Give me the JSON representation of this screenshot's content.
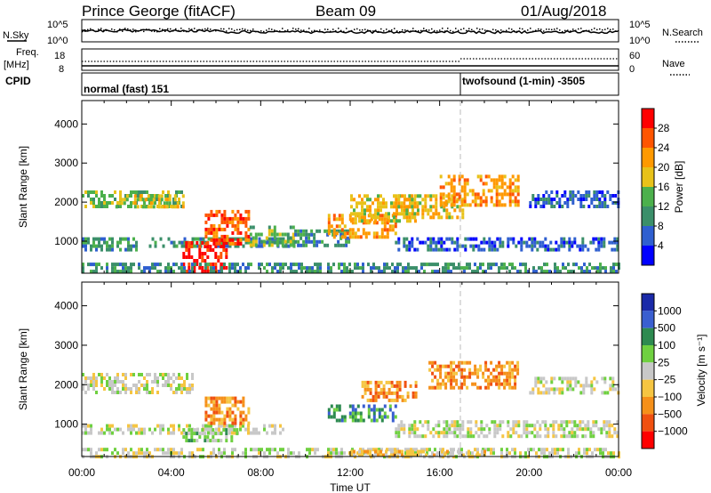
{
  "header": {
    "station": "Prince George (fitACF)",
    "beam": "Beam 09",
    "date": "01/Aug/2018"
  },
  "noise_panel": {
    "left_label": "N.Sky",
    "left_ticks": [
      "10^5",
      "10^0"
    ],
    "right_ticks": [
      "10^5",
      "10^0"
    ],
    "right_label": "N.Search"
  },
  "freq_panel": {
    "label_line1": "Freq.",
    "label_line2": "[MHz]",
    "left_ticks": [
      "18",
      "8"
    ],
    "right_ticks": [
      "60",
      "0"
    ],
    "right_label": "Nave"
  },
  "cpid_panel": {
    "label": "CPID",
    "segments": [
      {
        "label": "normal (fast) 151",
        "start_hour": 0
      },
      {
        "label": "twofsound (1-min) -3505",
        "start_hour": 17.0
      }
    ]
  },
  "colors": {
    "power": [
      "#0000ff",
      "#2f5fd0",
      "#3b8f6a",
      "#4cb04c",
      "#e8c21a",
      "#ff9900",
      "#ff5500",
      "#ff0000"
    ],
    "velocity": [
      "#1a2aa8",
      "#3a5fd0",
      "#2d8a50",
      "#6fd040",
      "#c8c8c8",
      "#f5c542",
      "#f5901a",
      "#f05010",
      "#ff0000"
    ],
    "ground_scatter": "#c8c8c8"
  },
  "chart_data": [
    {
      "type": "heatmap",
      "name": "power-panel",
      "ylabel": "Slant Range [km]",
      "yticks": [
        "1000",
        "2000",
        "3000",
        "4000"
      ],
      "ylim": [
        180,
        4600
      ],
      "xlim": [
        0,
        24
      ],
      "colorbar": {
        "label": "Power [dB]",
        "ticks": [
          "4",
          "8",
          "12",
          "16",
          "20",
          "24",
          "28"
        ],
        "range": [
          0,
          30
        ]
      },
      "bands": [
        {
          "t0": 0.0,
          "t1": 4.5,
          "r0": 1900,
          "r1": 2300,
          "level": 3
        },
        {
          "t0": 1.5,
          "t1": 4.5,
          "r0": 1900,
          "r1": 2200,
          "level": 4
        },
        {
          "t0": 0.0,
          "t1": 2.5,
          "r0": 800,
          "r1": 1100,
          "level": 2
        },
        {
          "t0": 3.0,
          "t1": 9.5,
          "r0": 900,
          "r1": 1100,
          "level": 2
        },
        {
          "t0": 4.5,
          "t1": 6.5,
          "r0": 250,
          "r1": 1000,
          "level": 7
        },
        {
          "t0": 5.5,
          "t1": 7.5,
          "r0": 900,
          "r1": 1800,
          "level": 6
        },
        {
          "t0": 7.5,
          "t1": 9.5,
          "r0": 900,
          "r1": 1400,
          "level": 3
        },
        {
          "t0": 9.5,
          "t1": 12.0,
          "r0": 900,
          "r1": 1300,
          "level": 2
        },
        {
          "t0": 11.0,
          "t1": 14.0,
          "r0": 1100,
          "r1": 1700,
          "level": 5
        },
        {
          "t0": 12.0,
          "t1": 15.0,
          "r0": 1500,
          "r1": 2200,
          "level": 4
        },
        {
          "t0": 14.0,
          "t1": 17.0,
          "r0": 1600,
          "r1": 2200,
          "level": 4
        },
        {
          "t0": 16.0,
          "t1": 19.5,
          "r0": 1900,
          "r1": 2700,
          "level": 5
        },
        {
          "t0": 14.0,
          "t1": 24.0,
          "r0": 800,
          "r1": 1100,
          "level": 1
        },
        {
          "t0": 20.0,
          "t1": 24.0,
          "r0": 1900,
          "r1": 2300,
          "level": 1
        },
        {
          "t0": 0.0,
          "t1": 24.0,
          "r0": 180,
          "r1": 450,
          "level": 2
        }
      ]
    },
    {
      "type": "heatmap",
      "name": "velocity-panel",
      "ylabel": "Slant Range [km]",
      "yticks": [
        "1000",
        "2000",
        "3000",
        "4000"
      ],
      "ylim": [
        180,
        4600
      ],
      "xlim": [
        0,
        24
      ],
      "xticks": [
        "00:00",
        "04:00",
        "08:00",
        "12:00",
        "16:00",
        "20:00",
        "00:00"
      ],
      "xlabel": "Time UT",
      "colorbar": {
        "label": "Velocity [m s⁻¹]",
        "ticks": [
          "1000",
          "500",
          "100",
          "25",
          "−25",
          "−100",
          "−500",
          "−1000"
        ]
      },
      "bands": [
        {
          "t0": 0.0,
          "t1": 5.0,
          "r0": 1800,
          "r1": 2300,
          "level": 4
        },
        {
          "t0": 0.0,
          "t1": 9.0,
          "r0": 800,
          "r1": 1000,
          "level": 4
        },
        {
          "t0": 5.5,
          "t1": 7.5,
          "r0": 1000,
          "r1": 1700,
          "level": 6
        },
        {
          "t0": 4.5,
          "t1": 7.0,
          "r0": 600,
          "r1": 900,
          "level": 3
        },
        {
          "t0": 11.0,
          "t1": 14.0,
          "r0": 1100,
          "r1": 1500,
          "level": 2
        },
        {
          "t0": 12.5,
          "t1": 15.0,
          "r0": 1600,
          "r1": 2100,
          "level": 6
        },
        {
          "t0": 15.5,
          "t1": 19.5,
          "r0": 1900,
          "r1": 2600,
          "level": 6
        },
        {
          "t0": 14.0,
          "t1": 24.0,
          "r0": 700,
          "r1": 1100,
          "level": 4
        },
        {
          "t0": 20.0,
          "t1": 24.0,
          "r0": 1800,
          "r1": 2200,
          "level": 4
        },
        {
          "t0": 0.0,
          "t1": 24.0,
          "r0": 180,
          "r1": 400,
          "level": 4
        },
        {
          "t0": 12.0,
          "t1": 18.0,
          "r0": 180,
          "r1": 350,
          "level": 5
        }
      ]
    }
  ]
}
